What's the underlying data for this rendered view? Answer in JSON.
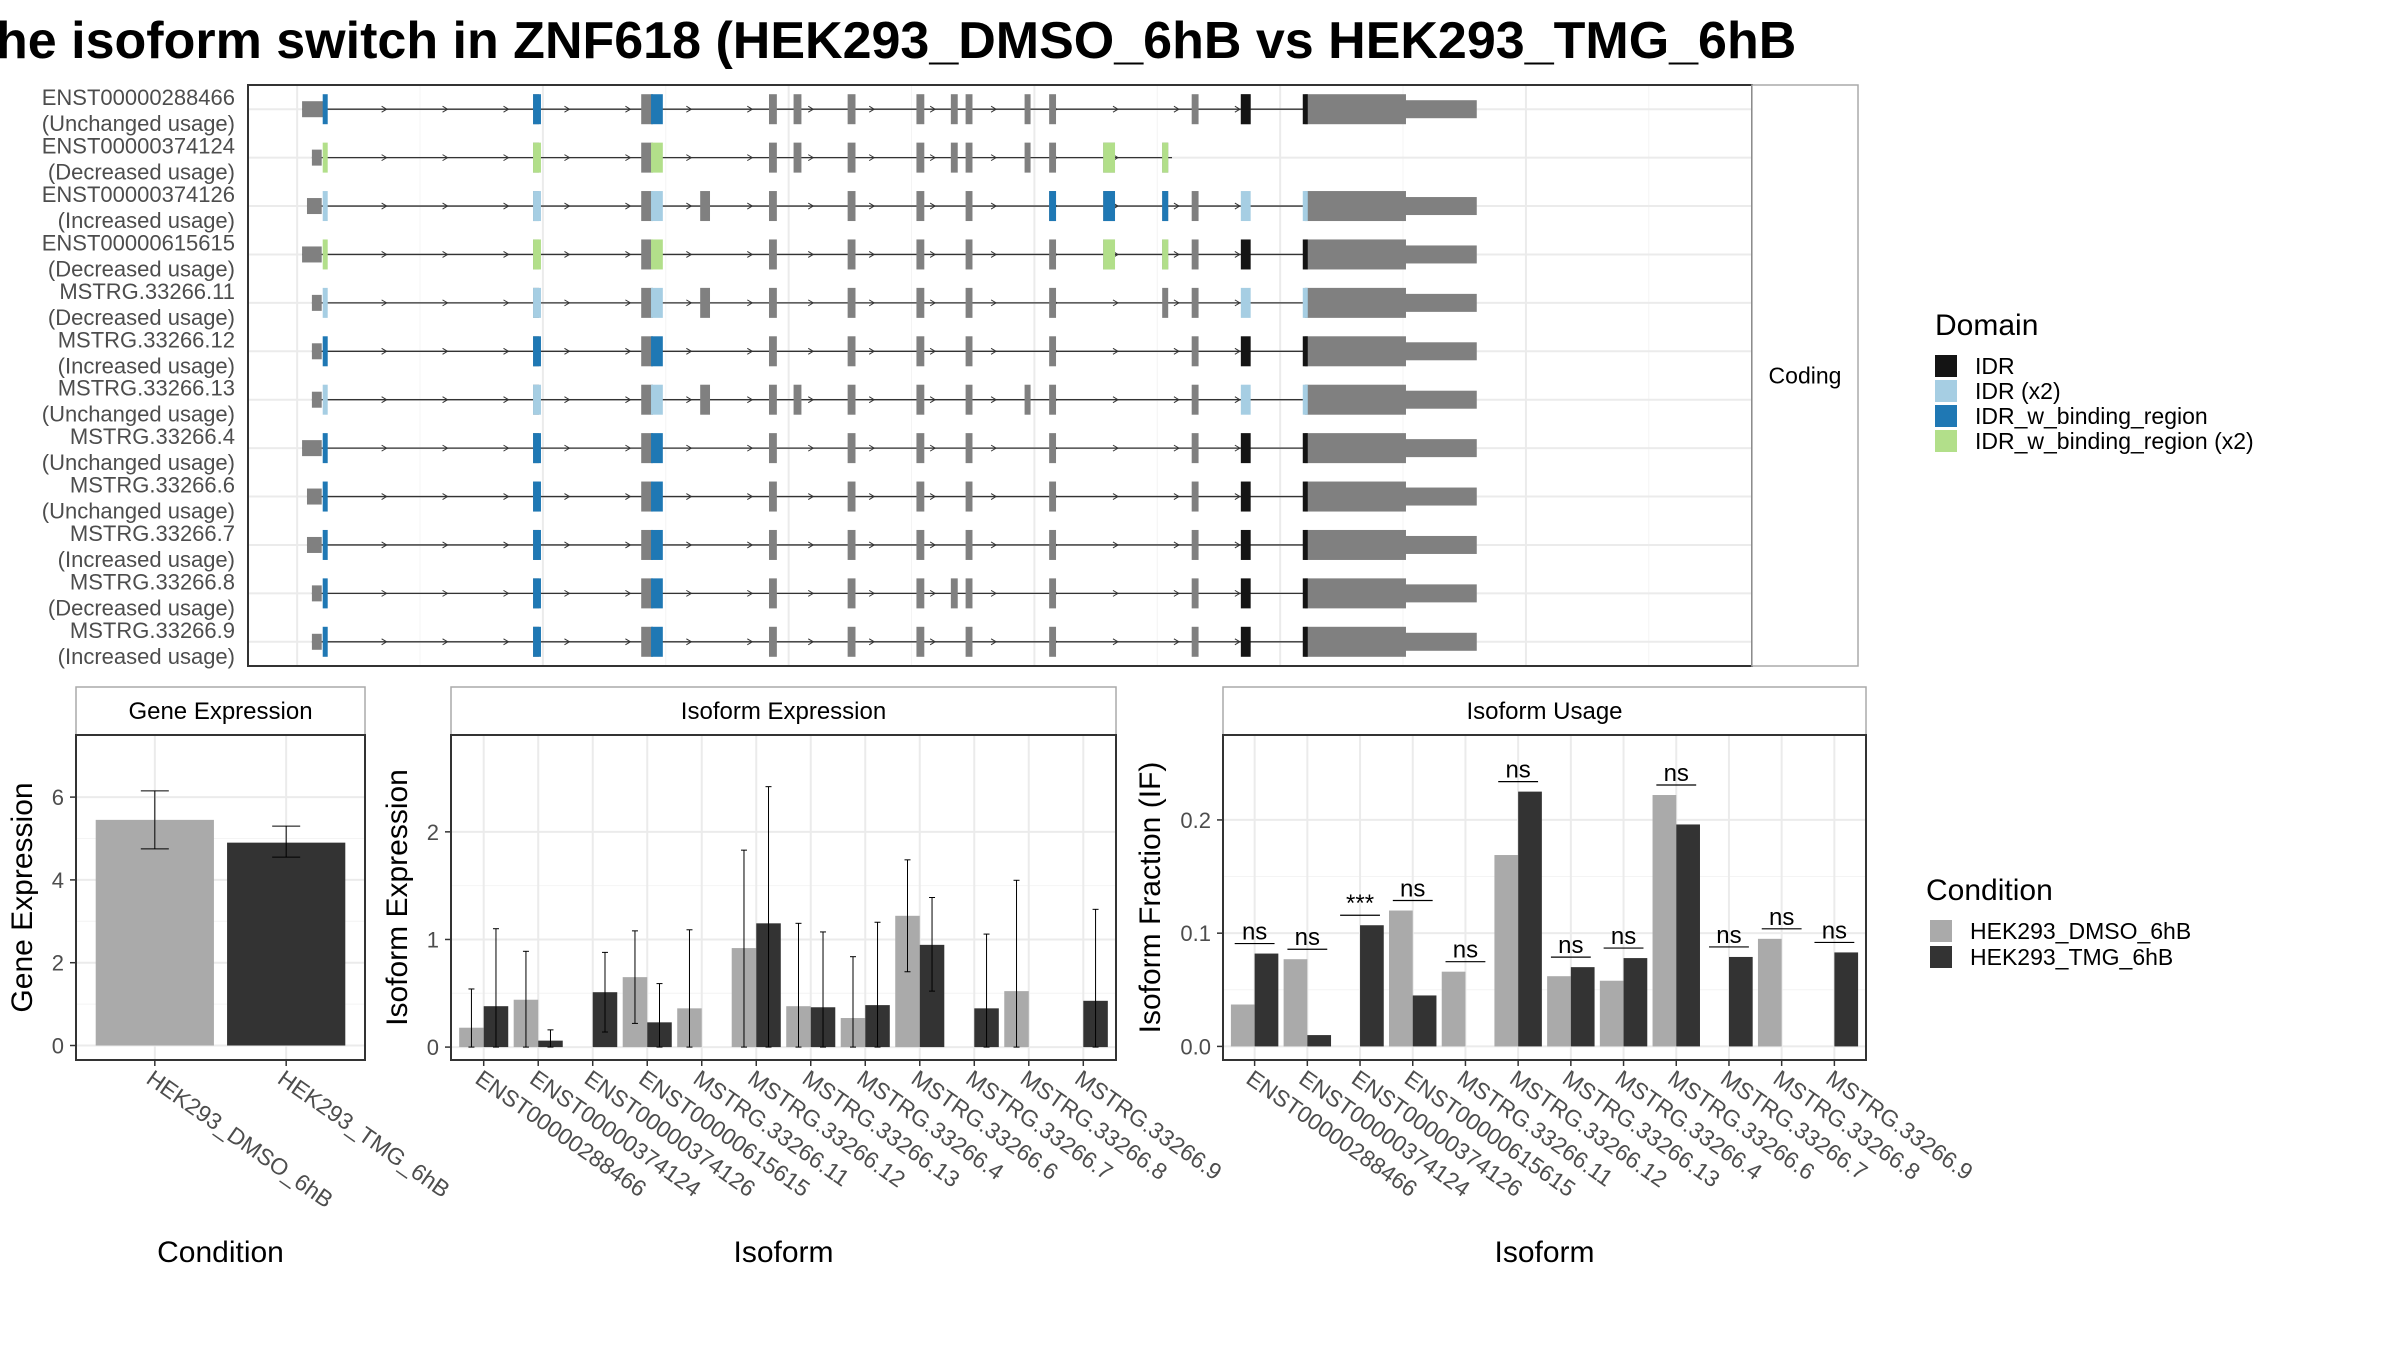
{
  "title": "he isoform switch in ZNF618 (HEK293_DMSO_6hB vs HEK293_TMG_6hB",
  "colors": {
    "DMSO": "#aaaaaa",
    "TMG": "#333333",
    "exon": "#808080",
    "IDR": "#141414",
    "IDR_x2": "#a6cee3",
    "IDR_w_binding_region": "#1f78b4",
    "IDR_w_binding_region_x2": "#b2df8a",
    "grid": "#ebebeb"
  },
  "structure": {
    "facet_label": "Coding",
    "domain_legend": {
      "title": "Domain",
      "items": [
        {
          "label": "IDR",
          "key": "IDR"
        },
        {
          "label": "IDR (x2)",
          "key": "IDR_x2"
        },
        {
          "label": "IDR_w_binding_region",
          "key": "IDR_w_binding_region"
        },
        {
          "label": "IDR_w_binding_region (x2)",
          "key": "IDR_w_binding_region_x2"
        }
      ]
    },
    "transcripts": [
      {
        "id": "ENST00000288466",
        "usage": "(Unchanged usage)",
        "start": 0.5,
        "end": 112,
        "domain": "IDR_w_binding_region",
        "idr": true,
        "exons": [
          [
            0.5,
            3
          ],
          [
            24,
            24.6
          ],
          [
            35,
            36.2
          ],
          [
            48,
            48.8
          ],
          [
            50.5,
            51.3
          ],
          [
            56,
            56.8
          ],
          [
            63,
            63.8
          ],
          [
            66.5,
            67.2
          ],
          [
            68,
            68.7
          ],
          [
            74,
            74.6
          ],
          [
            76.5,
            77.2
          ],
          [
            91,
            91.7
          ],
          [
            96,
            97
          ]
        ],
        "tail": [
          102.5,
          112
        ],
        "pre": [
          103.5,
          104.5
        ]
      },
      {
        "id": "ENST00000374124",
        "usage": "(Decreased usage)",
        "start": 1.5,
        "end": 89,
        "domain": "IDR_w_binding_region_x2",
        "idr": false,
        "exons": [
          [
            1.5,
            2.5
          ],
          [
            24,
            24.6
          ],
          [
            35,
            36.2
          ],
          [
            48,
            48.8
          ],
          [
            50.5,
            51.3
          ],
          [
            56,
            56.8
          ],
          [
            63,
            63.8
          ],
          [
            66.5,
            67.2
          ],
          [
            68,
            68.7
          ],
          [
            74,
            74.6
          ],
          [
            76.5,
            77.2
          ],
          [
            82,
            83.2
          ],
          [
            88,
            88.6
          ]
        ],
        "tail": null,
        "pre": null,
        "green_extra": [
          [
            82,
            83.2
          ],
          [
            88,
            88.6
          ]
        ]
      },
      {
        "id": "ENST00000374126",
        "usage": "(Increased usage)",
        "start": 1,
        "end": 112,
        "domain": "IDR_x2",
        "idr": false,
        "exons": [
          [
            1,
            2.5
          ],
          [
            24,
            24.6
          ],
          [
            35,
            36.2
          ],
          [
            41,
            42
          ],
          [
            48,
            48.8
          ],
          [
            56,
            56.8
          ],
          [
            63,
            63.8
          ],
          [
            68,
            68.7
          ],
          [
            76.5,
            77.2
          ],
          [
            82,
            83.2
          ],
          [
            88,
            88.6
          ],
          [
            91,
            91.7
          ]
        ],
        "tail": [
          102.5,
          112
        ],
        "pre": [
          99.5,
          100.3
        ],
        "blue_extra": [
          [
            76.5,
            77.2
          ],
          [
            82,
            83.2
          ],
          [
            88,
            88.6
          ]
        ]
      },
      {
        "id": "ENST00000615615",
        "usage": "(Decreased usage)",
        "start": 0.5,
        "end": 112,
        "domain": "IDR_w_binding_region_x2",
        "idr": true,
        "exons": [
          [
            0.5,
            2.5
          ],
          [
            24,
            24.6
          ],
          [
            35,
            36.2
          ],
          [
            48,
            48.8
          ],
          [
            56,
            56.8
          ],
          [
            63,
            63.8
          ],
          [
            68,
            68.7
          ],
          [
            76.5,
            77.2
          ],
          [
            82,
            83.2
          ],
          [
            88,
            88.6
          ],
          [
            91,
            91.7
          ]
        ],
        "tail": [
          102.5,
          112
        ],
        "pre": [
          99.5,
          100.3
        ],
        "green_extra": [
          [
            82,
            83.2
          ],
          [
            88,
            88.6
          ]
        ]
      },
      {
        "id": "MSTRG.33266.11",
        "usage": "(Decreased usage)",
        "start": 1.5,
        "end": 112,
        "domain": "IDR_x2",
        "idr": false,
        "exons": [
          [
            1.5,
            2.5
          ],
          [
            24,
            24.6
          ],
          [
            35,
            36.2
          ],
          [
            41,
            42
          ],
          [
            48,
            48.8
          ],
          [
            56,
            56.8
          ],
          [
            63,
            63.8
          ],
          [
            68,
            68.7
          ],
          [
            76.5,
            77.2
          ],
          [
            88,
            88.6
          ],
          [
            91,
            91.7
          ]
        ],
        "tail": [
          102.5,
          112
        ],
        "pre": [
          99.5,
          100.3
        ]
      },
      {
        "id": "MSTRG.33266.12",
        "usage": "(Increased usage)",
        "start": 1.5,
        "end": 112,
        "domain": "IDR_w_binding_region",
        "idr": true,
        "exons": [
          [
            1.5,
            2.5
          ],
          [
            24,
            24.6
          ],
          [
            35,
            36.2
          ],
          [
            48,
            48.8
          ],
          [
            56,
            56.8
          ],
          [
            63,
            63.8
          ],
          [
            68,
            68.7
          ],
          [
            76.5,
            77.2
          ],
          [
            91,
            91.7
          ]
        ],
        "tail": [
          102.5,
          112
        ],
        "pre": [
          99.5,
          100.3
        ]
      },
      {
        "id": "MSTRG.33266.13",
        "usage": "(Unchanged usage)",
        "start": 1.5,
        "end": 112,
        "domain": "IDR_x2",
        "idr": false,
        "exons": [
          [
            1.5,
            2.5
          ],
          [
            24,
            24.6
          ],
          [
            35,
            36.2
          ],
          [
            41,
            42
          ],
          [
            48,
            48.8
          ],
          [
            50.5,
            51.3
          ],
          [
            56,
            56.8
          ],
          [
            63,
            63.8
          ],
          [
            68,
            68.7
          ],
          [
            74,
            74.6
          ],
          [
            76.5,
            77.2
          ],
          [
            91,
            91.7
          ]
        ],
        "tail": [
          102.5,
          112
        ],
        "pre": [
          99.5,
          100.3
        ]
      },
      {
        "id": "MSTRG.33266.4",
        "usage": "(Unchanged usage)",
        "start": 0.5,
        "end": 112,
        "domain": "IDR_w_binding_region",
        "idr": true,
        "exons": [
          [
            0.5,
            2.5
          ],
          [
            24,
            24.6
          ],
          [
            35,
            36.2
          ],
          [
            48,
            48.8
          ],
          [
            56,
            56.8
          ],
          [
            63,
            63.8
          ],
          [
            68,
            68.7
          ],
          [
            76.5,
            77.2
          ],
          [
            91,
            91.7
          ]
        ],
        "tail": [
          102.5,
          112
        ],
        "pre": [
          99.5,
          100.3
        ]
      },
      {
        "id": "MSTRG.33266.6",
        "usage": "(Unchanged usage)",
        "start": 1,
        "end": 112,
        "domain": "IDR_w_binding_region",
        "idr": true,
        "exons": [
          [
            1,
            2.5
          ],
          [
            24,
            24.6
          ],
          [
            35,
            36.2
          ],
          [
            48,
            48.8
          ],
          [
            56,
            56.8
          ],
          [
            63,
            63.8
          ],
          [
            68,
            68.7
          ],
          [
            76.5,
            77.2
          ],
          [
            91,
            91.7
          ]
        ],
        "tail": [
          102.5,
          112
        ],
        "pre": [
          99.5,
          100.3
        ]
      },
      {
        "id": "MSTRG.33266.7",
        "usage": "(Increased usage)",
        "start": 1,
        "end": 112,
        "domain": "IDR_w_binding_region",
        "idr": true,
        "exons": [
          [
            1,
            2.5
          ],
          [
            24,
            24.6
          ],
          [
            35,
            36.2
          ],
          [
            48,
            48.8
          ],
          [
            56,
            56.8
          ],
          [
            63,
            63.8
          ],
          [
            68,
            68.7
          ],
          [
            76.5,
            77.2
          ],
          [
            91,
            91.7
          ]
        ],
        "tail": [
          102.5,
          112
        ],
        "pre": [
          99.5,
          100.3
        ]
      },
      {
        "id": "MSTRG.33266.8",
        "usage": "(Decreased usage)",
        "start": 1.5,
        "end": 112,
        "domain": "IDR_w_binding_region",
        "idr": true,
        "exons": [
          [
            1.5,
            2.5
          ],
          [
            24,
            24.6
          ],
          [
            35,
            36.2
          ],
          [
            48,
            48.8
          ],
          [
            56,
            56.8
          ],
          [
            63,
            63.8
          ],
          [
            66.5,
            67.2
          ],
          [
            68,
            68.7
          ],
          [
            76.5,
            77.2
          ],
          [
            91,
            91.7
          ]
        ],
        "tail": [
          102.5,
          112
        ],
        "pre": [
          99.5,
          100.3
        ]
      },
      {
        "id": "MSTRG.33266.9",
        "usage": "(Increased usage)",
        "start": 1.5,
        "end": 112,
        "domain": "IDR_w_binding_region",
        "idr": true,
        "exons": [
          [
            1.5,
            2.5
          ],
          [
            24,
            24.6
          ],
          [
            35,
            36.2
          ],
          [
            48,
            48.8
          ],
          [
            56,
            56.8
          ],
          [
            63,
            63.8
          ],
          [
            68,
            68.7
          ],
          [
            76.5,
            77.2
          ],
          [
            91,
            91.7
          ]
        ],
        "tail": [
          102.5,
          112
        ],
        "pre": [
          99.5,
          100.3
        ]
      }
    ]
  },
  "chart_data": [
    {
      "type": "bar",
      "title": "Gene Expression",
      "xlabel": "Condition",
      "ylabel": "Gene Expression",
      "categories": [
        "HEK293_DMSO_6hB",
        "HEK293_TMG_6hB"
      ],
      "values": [
        5.45,
        4.9
      ],
      "errors": [
        [
          4.75,
          6.15
        ],
        [
          4.55,
          5.3
        ]
      ],
      "ylim": [
        -0.35,
        7.5
      ],
      "yticks": [
        0,
        2,
        4,
        6
      ]
    },
    {
      "type": "bar",
      "title": "Isoform Expression",
      "xlabel": "Isoform",
      "ylabel": "Isoform Expression",
      "categories": [
        "ENST00000288466",
        "ENST00000374124",
        "ENST00000374126",
        "ENST00000615615",
        "MSTRG.33266.11",
        "MSTRG.33266.12",
        "MSTRG.33266.13",
        "MSTRG.33266.4",
        "MSTRG.33266.6",
        "MSTRG.33266.7",
        "MSTRG.33266.8",
        "MSTRG.33266.9"
      ],
      "series": [
        {
          "name": "HEK293_DMSO_6hB",
          "values": [
            0.18,
            0.44,
            0.0,
            0.65,
            0.36,
            0.92,
            0.38,
            0.27,
            1.22,
            0.0,
            0.52,
            0.0
          ],
          "errors": [
            [
              0.0,
              0.54
            ],
            [
              0.0,
              0.89
            ],
            [
              0,
              0
            ],
            [
              0.22,
              1.08
            ],
            [
              0.0,
              1.09
            ],
            [
              0.0,
              1.83
            ],
            [
              0.0,
              1.15
            ],
            [
              0.0,
              0.84
            ],
            [
              0.7,
              1.74
            ],
            [
              0,
              0
            ],
            [
              0.0,
              1.55
            ],
            [
              0,
              0
            ]
          ]
        },
        {
          "name": "HEK293_TMG_6hB",
          "values": [
            0.38,
            0.06,
            0.51,
            0.23,
            0.0,
            1.15,
            0.37,
            0.39,
            0.95,
            0.36,
            0.0,
            0.43
          ],
          "errors": [
            [
              0.0,
              1.1
            ],
            [
              0.0,
              0.16
            ],
            [
              0.14,
              0.88
            ],
            [
              0.0,
              0.59
            ],
            [
              0,
              0
            ],
            [
              0.0,
              2.42
            ],
            [
              0.0,
              1.07
            ],
            [
              0.0,
              1.16
            ],
            [
              0.52,
              1.39
            ],
            [
              0.0,
              1.05
            ],
            [
              0,
              0
            ],
            [
              0.0,
              1.28
            ]
          ]
        }
      ],
      "ylim": [
        -0.12,
        2.9
      ],
      "yticks": [
        0,
        1,
        2
      ]
    },
    {
      "type": "bar",
      "title": "Isoform Usage",
      "xlabel": "Isoform",
      "ylabel": "Isoform Fraction (IF)",
      "categories": [
        "ENST00000288466",
        "ENST00000374124",
        "ENST00000374126",
        "ENST00000615615",
        "MSTRG.33266.11",
        "MSTRG.33266.12",
        "MSTRG.33266.13",
        "MSTRG.33266.4",
        "MSTRG.33266.6",
        "MSTRG.33266.7",
        "MSTRG.33266.8",
        "MSTRG.33266.9"
      ],
      "series": [
        {
          "name": "HEK293_DMSO_6hB",
          "values": [
            0.037,
            0.077,
            0.0,
            0.12,
            0.066,
            0.169,
            0.062,
            0.058,
            0.222,
            0.0,
            0.095,
            0.0
          ]
        },
        {
          "name": "HEK293_TMG_6hB",
          "values": [
            0.082,
            0.01,
            0.107,
            0.045,
            0.0,
            0.225,
            0.07,
            0.078,
            0.196,
            0.079,
            0.0,
            0.083
          ]
        }
      ],
      "significance": [
        "ns",
        "ns",
        "***",
        "ns",
        "ns",
        "ns",
        "ns",
        "ns",
        "ns",
        "ns",
        "ns",
        "ns"
      ],
      "ylim": [
        -0.012,
        0.275
      ],
      "yticks": [
        0.0,
        0.1,
        0.2
      ],
      "ytick_labels": [
        "0.0",
        "0.1",
        "0.2"
      ]
    }
  ],
  "condition_legend": {
    "title": "Condition",
    "items": [
      {
        "label": "HEK293_DMSO_6hB",
        "key": "DMSO"
      },
      {
        "label": "HEK293_TMG_6hB",
        "key": "TMG"
      }
    ]
  }
}
